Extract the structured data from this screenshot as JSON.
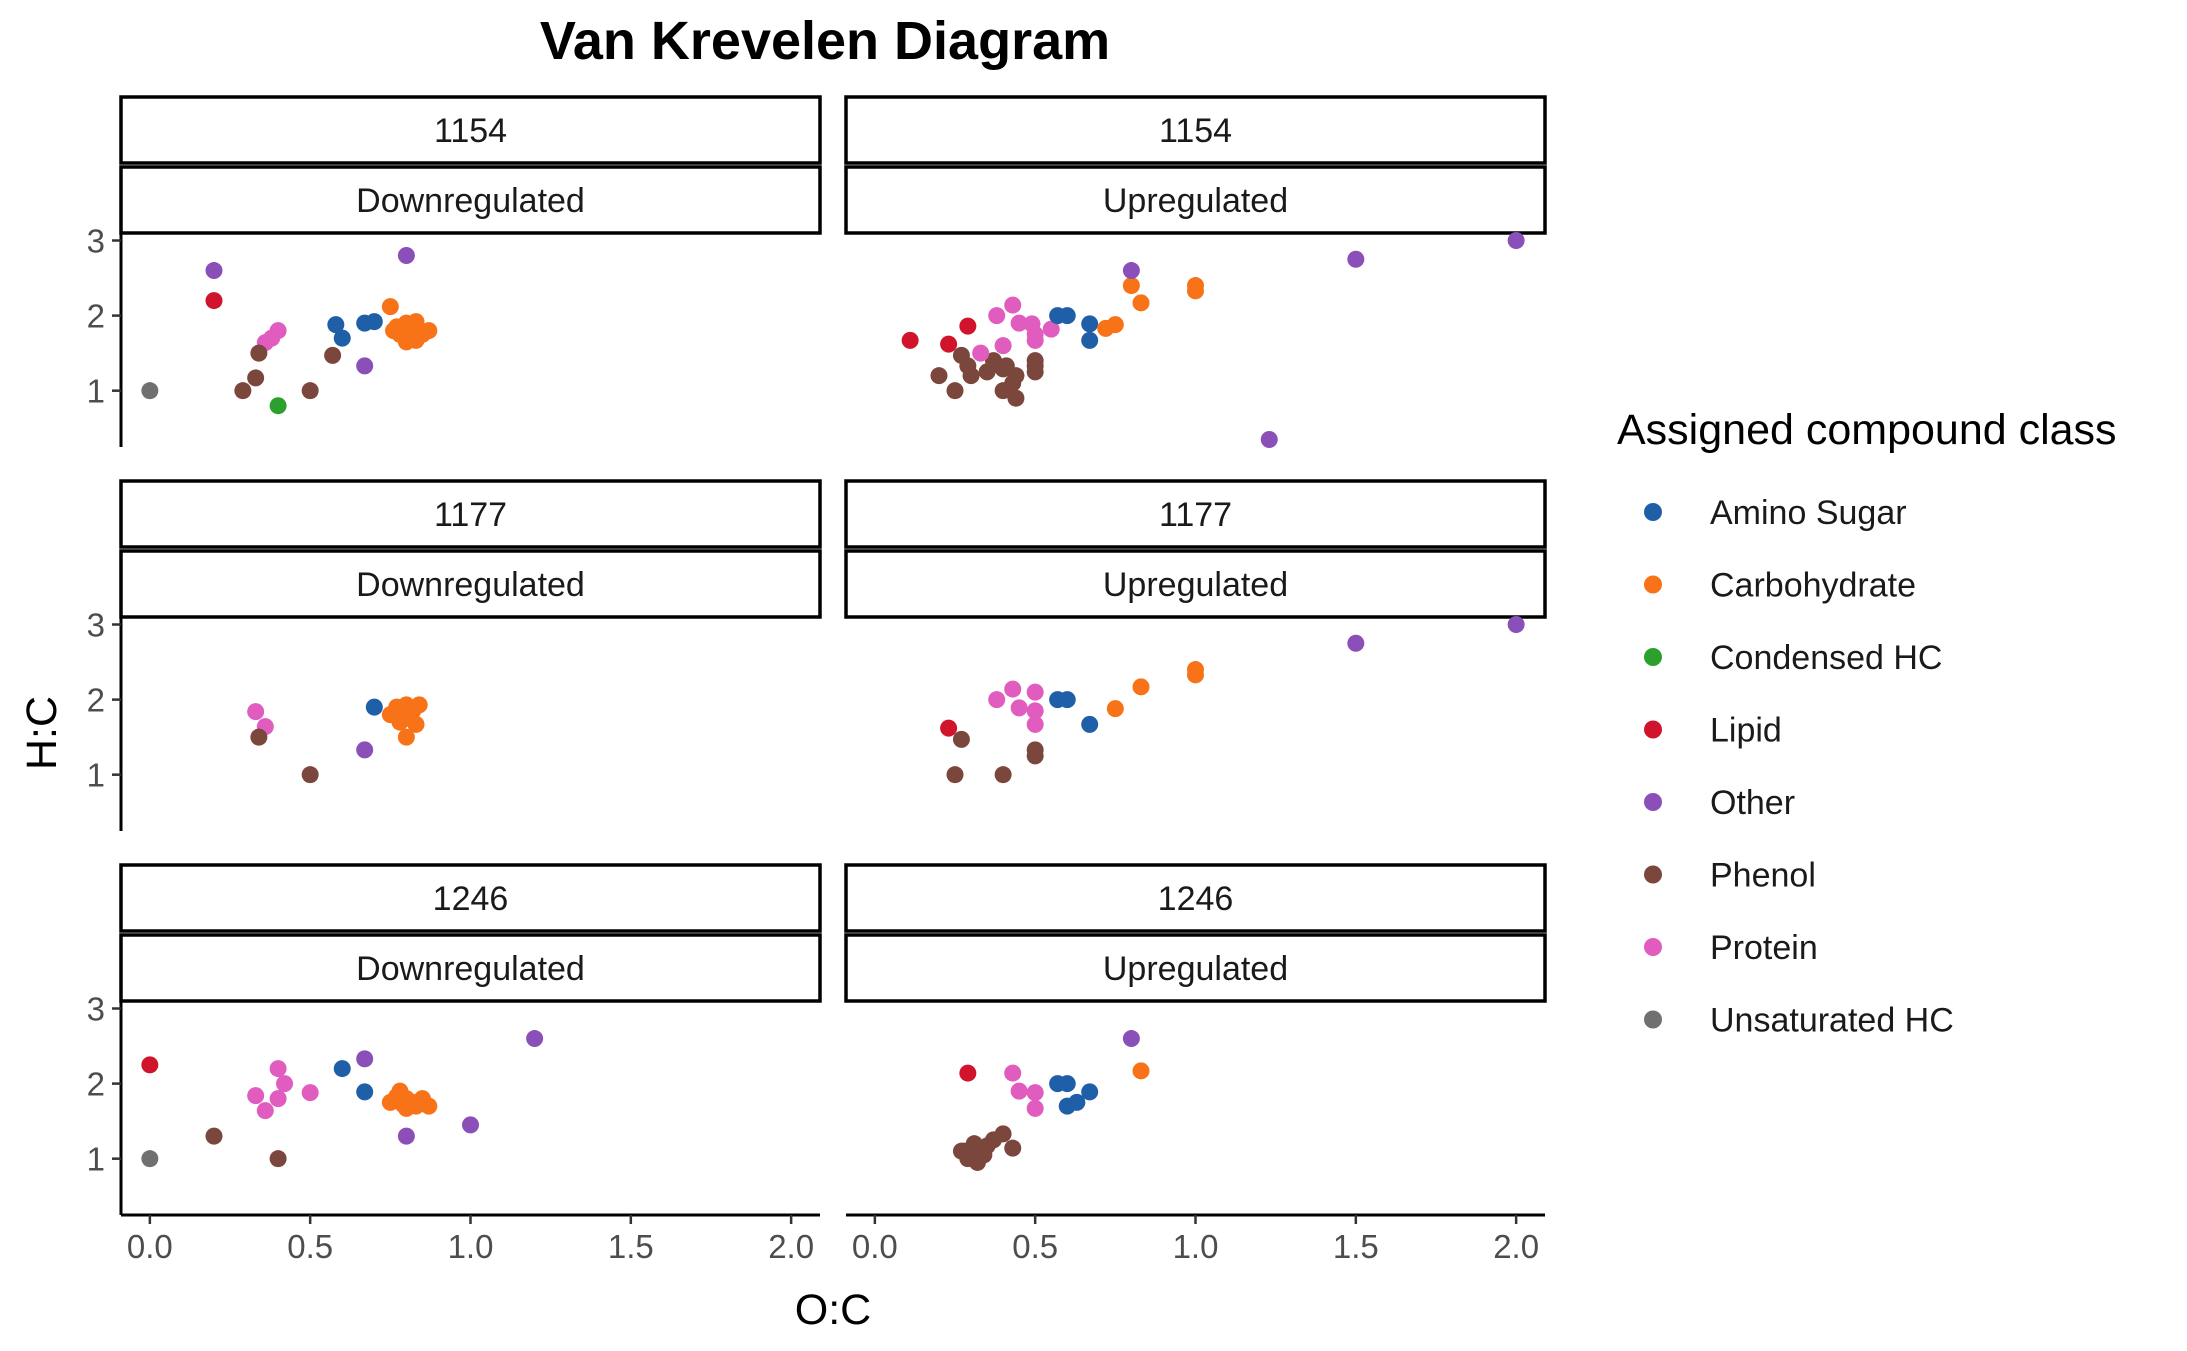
{
  "chart_data": {
    "type": "scatter",
    "title": "Van Krevelen Diagram",
    "xlabel": "O:C",
    "ylabel": "H:C",
    "xlim": [
      -0.09,
      2.09
    ],
    "ylim": [
      0.25,
      3.1
    ],
    "x_ticks": [
      "0.0",
      "0.5",
      "1.0",
      "1.5",
      "2.0"
    ],
    "x_tick_values": [
      0,
      0.5,
      1,
      1.5,
      2
    ],
    "y_ticks": [
      "1",
      "2",
      "3"
    ],
    "y_tick_values": [
      1,
      2,
      3
    ],
    "grid": false,
    "legend": {
      "title": "Assigned compound class",
      "position": "right",
      "entries": [
        {
          "name": "Amino Sugar",
          "color": "#1f5fa8"
        },
        {
          "name": "Carbohydrate",
          "color": "#f87217"
        },
        {
          "name": "Condensed HC",
          "color": "#2ca02c"
        },
        {
          "name": "Lipid",
          "color": "#d0142c"
        },
        {
          "name": "Other",
          "color": "#8a4fb8"
        },
        {
          "name": "Phenol",
          "color": "#7b473d"
        },
        {
          "name": "Protein",
          "color": "#e05cbe"
        },
        {
          "name": "Unsaturated HC",
          "color": "#707070"
        }
      ]
    },
    "panels": [
      {
        "strip_top": "1154",
        "strip_bottom": "Downregulated",
        "series": [
          {
            "name": "Unsaturated HC",
            "x": [
              0.0
            ],
            "y": [
              1.0
            ]
          },
          {
            "name": "Other",
            "x": [
              0.2,
              0.8,
              0.67
            ],
            "y": [
              2.6,
              2.8,
              1.33
            ]
          },
          {
            "name": "Lipid",
            "x": [
              0.2
            ],
            "y": [
              2.2
            ]
          },
          {
            "name": "Protein",
            "x": [
              0.36,
              0.4,
              0.38
            ],
            "y": [
              1.64,
              1.8,
              1.7
            ]
          },
          {
            "name": "Phenol",
            "x": [
              0.34,
              0.33,
              0.29,
              0.5,
              0.57
            ],
            "y": [
              1.5,
              1.17,
              1.0,
              1.0,
              1.47
            ]
          },
          {
            "name": "Condensed HC",
            "x": [
              0.4
            ],
            "y": [
              0.8
            ]
          },
          {
            "name": "Amino Sugar",
            "x": [
              0.58,
              0.6,
              0.67,
              0.7
            ],
            "y": [
              1.88,
              1.7,
              1.9,
              1.92
            ]
          },
          {
            "name": "Carbohydrate",
            "x": [
              0.75,
              0.76,
              0.78,
              0.8,
              0.8,
              0.82,
              0.83,
              0.85,
              0.87,
              0.77,
              0.8,
              0.83
            ],
            "y": [
              2.12,
              1.8,
              1.75,
              1.9,
              1.7,
              1.8,
              1.92,
              1.75,
              1.8,
              1.85,
              1.65,
              1.67
            ]
          }
        ]
      },
      {
        "strip_top": "1154",
        "strip_bottom": "Upregulated",
        "series": [
          {
            "name": "Lipid",
            "x": [
              0.11,
              0.23,
              0.29
            ],
            "y": [
              1.67,
              1.62,
              1.86
            ]
          },
          {
            "name": "Phenol",
            "x": [
              0.2,
              0.25,
              0.27,
              0.29,
              0.3,
              0.35,
              0.37,
              0.4,
              0.4,
              0.41,
              0.43,
              0.44,
              0.44,
              0.5,
              0.5,
              0.5
            ],
            "y": [
              1.2,
              1.0,
              1.47,
              1.33,
              1.2,
              1.25,
              1.4,
              1.0,
              1.29,
              1.33,
              1.1,
              0.9,
              1.2,
              1.25,
              1.33,
              1.4
            ]
          },
          {
            "name": "Protein",
            "x": [
              0.33,
              0.38,
              0.4,
              0.43,
              0.45,
              0.49,
              0.5,
              0.5,
              0.55
            ],
            "y": [
              1.5,
              2.0,
              1.6,
              2.14,
              1.9,
              1.89,
              1.67,
              1.75,
              1.82
            ]
          },
          {
            "name": "Amino Sugar",
            "x": [
              0.57,
              0.6,
              0.67,
              0.67
            ],
            "y": [
              2.0,
              2.0,
              1.89,
              1.67
            ]
          },
          {
            "name": "Carbohydrate",
            "x": [
              0.72,
              0.75,
              0.8,
              0.83,
              1.0,
              1.0
            ],
            "y": [
              1.83,
              1.88,
              2.4,
              2.17,
              2.4,
              2.33
            ]
          },
          {
            "name": "Other",
            "x": [
              0.8,
              1.23,
              1.5,
              2.0
            ],
            "y": [
              2.6,
              0.35,
              2.75,
              3.0
            ]
          }
        ]
      },
      {
        "strip_top": "1177",
        "strip_bottom": "Downregulated",
        "series": [
          {
            "name": "Protein",
            "x": [
              0.33,
              0.36
            ],
            "y": [
              1.84,
              1.64
            ]
          },
          {
            "name": "Phenol",
            "x": [
              0.34,
              0.5
            ],
            "y": [
              1.5,
              1.0
            ]
          },
          {
            "name": "Other",
            "x": [
              0.67
            ],
            "y": [
              1.33
            ]
          },
          {
            "name": "Amino Sugar",
            "x": [
              0.7
            ],
            "y": [
              1.9
            ]
          },
          {
            "name": "Carbohydrate",
            "x": [
              0.75,
              0.77,
              0.78,
              0.8,
              0.8,
              0.82,
              0.83,
              0.84,
              0.8
            ],
            "y": [
              1.8,
              1.9,
              1.7,
              1.93,
              1.75,
              1.85,
              1.67,
              1.93,
              1.5
            ]
          }
        ]
      },
      {
        "strip_top": "1177",
        "strip_bottom": "Upregulated",
        "series": [
          {
            "name": "Lipid",
            "x": [
              0.23
            ],
            "y": [
              1.62
            ]
          },
          {
            "name": "Phenol",
            "x": [
              0.25,
              0.27,
              0.4,
              0.5,
              0.5
            ],
            "y": [
              1.0,
              1.47,
              1.0,
              1.33,
              1.25
            ]
          },
          {
            "name": "Protein",
            "x": [
              0.38,
              0.43,
              0.45,
              0.5,
              0.5,
              0.5
            ],
            "y": [
              2.0,
              2.14,
              1.89,
              2.1,
              1.85,
              1.67
            ]
          },
          {
            "name": "Amino Sugar",
            "x": [
              0.57,
              0.6,
              0.67
            ],
            "y": [
              2.0,
              2.0,
              1.67
            ]
          },
          {
            "name": "Carbohydrate",
            "x": [
              0.75,
              0.83,
              1.0,
              1.0
            ],
            "y": [
              1.88,
              2.17,
              2.4,
              2.33
            ]
          },
          {
            "name": "Other",
            "x": [
              1.5,
              2.0
            ],
            "y": [
              2.75,
              3.0
            ]
          }
        ]
      },
      {
        "strip_top": "1246",
        "strip_bottom": "Downregulated",
        "series": [
          {
            "name": "Lipid",
            "x": [
              0.0
            ],
            "y": [
              2.25
            ]
          },
          {
            "name": "Unsaturated HC",
            "x": [
              0.0
            ],
            "y": [
              1.0
            ]
          },
          {
            "name": "Phenol",
            "x": [
              0.2,
              0.4
            ],
            "y": [
              1.3,
              1.0
            ]
          },
          {
            "name": "Protein",
            "x": [
              0.33,
              0.36,
              0.4,
              0.4,
              0.42,
              0.5
            ],
            "y": [
              1.84,
              1.64,
              2.2,
              1.8,
              2.0,
              1.88
            ]
          },
          {
            "name": "Amino Sugar",
            "x": [
              0.6,
              0.67
            ],
            "y": [
              2.2,
              1.89
            ]
          },
          {
            "name": "Other",
            "x": [
              0.67,
              0.8,
              1.0,
              1.2
            ],
            "y": [
              2.33,
              1.3,
              1.45,
              2.6
            ]
          },
          {
            "name": "Carbohydrate",
            "x": [
              0.75,
              0.77,
              0.78,
              0.8,
              0.8,
              0.82,
              0.83,
              0.85,
              0.87,
              0.79
            ],
            "y": [
              1.75,
              1.83,
              1.9,
              1.67,
              1.8,
              1.75,
              1.7,
              1.8,
              1.7,
              1.72
            ]
          }
        ]
      },
      {
        "strip_top": "1246",
        "strip_bottom": "Upregulated",
        "series": [
          {
            "name": "Lipid",
            "x": [
              0.29
            ],
            "y": [
              2.14
            ]
          },
          {
            "name": "Phenol",
            "x": [
              0.27,
              0.29,
              0.3,
              0.31,
              0.32,
              0.33,
              0.34,
              0.35,
              0.37,
              0.4,
              0.43,
              0.3,
              0.28
            ],
            "y": [
              1.1,
              1.0,
              1.12,
              1.2,
              0.95,
              1.1,
              1.05,
              1.17,
              1.25,
              1.33,
              1.14,
              1.05,
              1.1
            ]
          },
          {
            "name": "Protein",
            "x": [
              0.43,
              0.45,
              0.5,
              0.5
            ],
            "y": [
              2.14,
              1.9,
              1.88,
              1.67
            ]
          },
          {
            "name": "Amino Sugar",
            "x": [
              0.57,
              0.6,
              0.6,
              0.63,
              0.67
            ],
            "y": [
              2.0,
              2.0,
              1.7,
              1.75,
              1.89
            ]
          },
          {
            "name": "Other",
            "x": [
              0.8
            ],
            "y": [
              2.6
            ]
          },
          {
            "name": "Carbohydrate",
            "x": [
              0.83
            ],
            "y": [
              2.17
            ]
          }
        ]
      }
    ]
  }
}
